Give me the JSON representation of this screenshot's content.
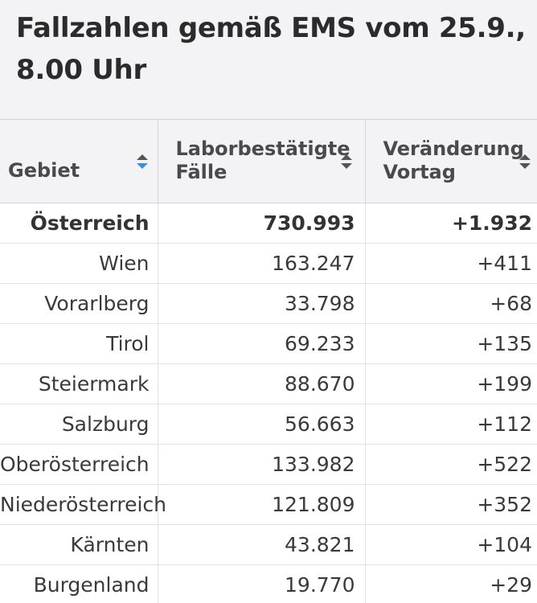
{
  "title": "Fallzahlen gemäß EMS vom 25.9.,\n8.00 Uhr",
  "colors": {
    "header_bg": "#f3f3f5",
    "sort_active": "#3a8ee6",
    "sort_inactive": "#555555"
  },
  "table": {
    "columns": [
      {
        "label": "Gebiet",
        "sort_icon": "sort-ascending-icon"
      },
      {
        "label": "Laborbestätigte\nFälle",
        "sort_icon": "sort-icon"
      },
      {
        "label": "Veränderung\nVortag",
        "sort_icon": "sort-icon"
      }
    ],
    "rows": [
      {
        "region": "Österreich",
        "cases": "730.993",
        "change": "+1.932"
      },
      {
        "region": "Wien",
        "cases": "163.247",
        "change": "+411"
      },
      {
        "region": "Vorarlberg",
        "cases": "33.798",
        "change": "+68"
      },
      {
        "region": "Tirol",
        "cases": "69.233",
        "change": "+135"
      },
      {
        "region": "Steiermark",
        "cases": "88.670",
        "change": "+199"
      },
      {
        "region": "Salzburg",
        "cases": "56.663",
        "change": "+112"
      },
      {
        "region": "Oberösterreich",
        "cases": "133.982",
        "change": "+522"
      },
      {
        "region": "Niederösterreich",
        "cases": "121.809",
        "change": "+352"
      },
      {
        "region": "Kärnten",
        "cases": "43.821",
        "change": "+104"
      },
      {
        "region": "Burgenland",
        "cases": "19.770",
        "change": "+29"
      }
    ]
  }
}
